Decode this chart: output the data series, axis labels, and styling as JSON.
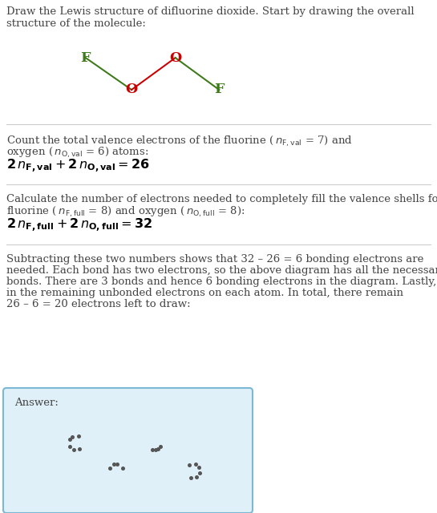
{
  "f_color": "#3d7a1a",
  "o_color": "#cc0000",
  "f_bond_color": "#3d7a1a",
  "o_bond_color": "#cc0000",
  "bg_color": "#ffffff",
  "answer_bg": "#dff0f8",
  "answer_border": "#7ab8d4",
  "text_color": "#444444",
  "sep_color": "#cccccc",
  "dot_color": "#555555",
  "title": "Draw the Lewis structure of difluorine dioxide. Start by drawing the overall\nstructure of the molecule:",
  "s1_line1": "Count the total valence electrons of the fluorine (",
  "s1_nF": "$n_{\\mathrm{F,val}}$",
  "s1_mid": " = 7) and",
  "s1_line2": "oxygen (",
  "s1_nO": "$n_{\\mathrm{O,val}}$",
  "s1_end": " = 6) atoms:",
  "s1_formula_pre": "$\\mathbf{2}\\,n$",
  "s1_formula": "$\\mathbf{2}\\,\\mathit{n}_{\\mathrm{F,val}} + \\mathbf{2}\\,\\mathit{n}_{\\mathrm{O,val}} = \\mathbf{26}$",
  "s2_line1": "Calculate the number of electrons needed to completely fill the valence shells for",
  "s2_line2a": "fluorine (",
  "s2_nF": "$n_{\\mathrm{F,full}}$",
  "s2_mid": " = 8) and oxygen (",
  "s2_nO": "$n_{\\mathrm{O,full}}$",
  "s2_end": " = 8):",
  "s2_formula": "$\\mathbf{2}\\,\\mathit{n}_{\\mathrm{F,full}} + \\mathbf{2}\\,\\mathit{n}_{\\mathrm{O,full}} = \\mathbf{32}$",
  "s3_lines": [
    "Subtracting these two numbers shows that 32 – 26 = 6 bonding electrons are",
    "needed. Each bond has two electrons, so the above diagram has all the necessary",
    "bonds. There are 3 bonds and hence 6 bonding electrons in the diagram. Lastly, fill",
    "in the remaining unbonded electrons on each atom. In total, there remain",
    "26 – 6 = 20 electrons left to draw:"
  ],
  "answer_label": "Answer:"
}
